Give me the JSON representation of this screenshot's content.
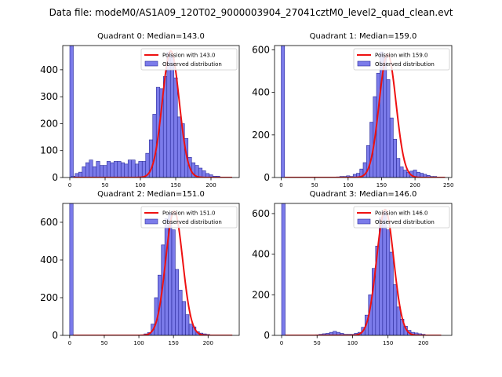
{
  "figure_title": "Data file: modeM0/AS1A09_120T02_9000003904_27041cztM0_level2_quad_clean.evt",
  "chart_data": [
    {
      "type": "bar",
      "title": "Quadrant 0: Median=143.0",
      "xlim": [
        -10,
        240
      ],
      "ylim": [
        0,
        490
      ],
      "xticks": [
        0,
        50,
        100,
        150,
        200
      ],
      "yticks": [
        0,
        100,
        200,
        300,
        400
      ],
      "legend_position": "top-right",
      "legend": [
        "Poission with 143.0",
        "Observed distribution"
      ],
      "hist": {
        "bin_width": 5,
        "zero_bin_count": 490,
        "x": [
          5,
          10,
          15,
          20,
          25,
          30,
          35,
          40,
          45,
          50,
          55,
          60,
          65,
          70,
          75,
          80,
          85,
          90,
          95,
          100,
          105,
          110,
          115,
          120,
          125,
          130,
          135,
          140,
          145,
          150,
          155,
          160,
          165,
          170,
          175,
          180,
          185,
          190,
          195,
          200,
          205,
          210,
          215,
          220,
          225
        ],
        "counts": [
          5,
          15,
          20,
          40,
          55,
          65,
          40,
          60,
          45,
          45,
          60,
          55,
          60,
          60,
          55,
          50,
          65,
          65,
          50,
          60,
          60,
          90,
          140,
          235,
          335,
          330,
          375,
          465,
          450,
          370,
          225,
          200,
          145,
          75,
          55,
          45,
          35,
          25,
          15,
          10,
          5,
          5,
          0,
          0,
          0
        ]
      },
      "poisson": {
        "name": "Poission with 143.0",
        "mean": 143.0,
        "peak": 470,
        "x_start": 5,
        "x_end": 230
      }
    },
    {
      "type": "bar",
      "title": "Quadrant 1: Median=159.0",
      "xlim": [
        -10,
        255
      ],
      "ylim": [
        0,
        620
      ],
      "xticks": [
        0,
        50,
        100,
        150,
        200,
        250
      ],
      "yticks": [
        0,
        200,
        400,
        600
      ],
      "legend_position": "top-right",
      "legend": [
        "Poission with 159.0",
        "Observed distribution"
      ],
      "hist": {
        "bin_width": 5,
        "zero_bin_count": 620,
        "x": [
          5,
          10,
          15,
          20,
          25,
          30,
          35,
          40,
          45,
          50,
          55,
          60,
          65,
          70,
          75,
          80,
          85,
          90,
          95,
          100,
          105,
          110,
          115,
          120,
          125,
          130,
          135,
          140,
          145,
          150,
          155,
          160,
          165,
          170,
          175,
          180,
          185,
          190,
          195,
          200,
          205,
          210,
          215,
          220,
          225,
          230,
          235,
          240
        ],
        "counts": [
          0,
          0,
          0,
          0,
          0,
          0,
          0,
          0,
          0,
          0,
          0,
          0,
          0,
          0,
          0,
          2,
          3,
          5,
          5,
          8,
          5,
          15,
          20,
          40,
          70,
          150,
          260,
          380,
          490,
          590,
          570,
          460,
          280,
          180,
          90,
          50,
          35,
          25,
          30,
          35,
          25,
          20,
          15,
          10,
          5,
          5,
          0,
          0
        ]
      },
      "poisson": {
        "name": "Poission with 159.0",
        "mean": 159.0,
        "peak": 580,
        "x_start": 5,
        "x_end": 245
      }
    },
    {
      "type": "bar",
      "title": "Quadrant 2: Median=151.0",
      "xlim": [
        -10,
        245
      ],
      "ylim": [
        0,
        700
      ],
      "xticks": [
        0,
        50,
        100,
        150,
        200
      ],
      "yticks": [
        0,
        200,
        400,
        600
      ],
      "legend_position": "top-right",
      "legend": [
        "Poission with 151.0",
        "Observed distribution"
      ],
      "hist": {
        "bin_width": 5,
        "zero_bin_count": 700,
        "x": [
          5,
          10,
          15,
          20,
          25,
          30,
          35,
          40,
          45,
          50,
          55,
          60,
          65,
          70,
          75,
          80,
          85,
          90,
          95,
          100,
          105,
          110,
          115,
          120,
          125,
          130,
          135,
          140,
          145,
          150,
          155,
          160,
          165,
          170,
          175,
          180,
          185,
          190,
          195,
          200,
          205,
          210,
          215,
          220,
          225,
          230
        ],
        "counts": [
          0,
          0,
          0,
          0,
          0,
          0,
          0,
          0,
          0,
          0,
          0,
          0,
          0,
          0,
          0,
          0,
          0,
          0,
          0,
          2,
          3,
          8,
          15,
          60,
          200,
          320,
          480,
          620,
          650,
          560,
          350,
          240,
          180,
          110,
          60,
          45,
          20,
          12,
          8,
          5,
          0,
          0,
          0,
          0,
          0,
          0
        ]
      },
      "poisson": {
        "name": "Poission with 151.0",
        "mean": 151.0,
        "peak": 660,
        "x_start": 5,
        "x_end": 235
      }
    },
    {
      "type": "bar",
      "title": "Quadrant 3: Median=146.0",
      "xlim": [
        -10,
        240
      ],
      "ylim": [
        0,
        650
      ],
      "xticks": [
        0,
        50,
        100,
        150,
        200
      ],
      "yticks": [
        0,
        200,
        400,
        600
      ],
      "legend_position": "top-right",
      "legend": [
        "Poission with 146.0",
        "Observed distribution"
      ],
      "hist": {
        "bin_width": 5,
        "zero_bin_count": 650,
        "x": [
          5,
          10,
          15,
          20,
          25,
          30,
          35,
          40,
          45,
          50,
          55,
          60,
          65,
          70,
          75,
          80,
          85,
          90,
          95,
          100,
          105,
          110,
          115,
          120,
          125,
          130,
          135,
          140,
          145,
          150,
          155,
          160,
          165,
          170,
          175,
          180,
          185,
          190,
          195,
          200,
          205,
          210,
          215,
          220,
          225
        ],
        "counts": [
          0,
          0,
          0,
          0,
          0,
          0,
          0,
          0,
          2,
          3,
          5,
          8,
          10,
          15,
          20,
          15,
          10,
          5,
          5,
          5,
          10,
          15,
          40,
          100,
          200,
          330,
          440,
          580,
          610,
          520,
          410,
          250,
          140,
          80,
          45,
          25,
          15,
          12,
          8,
          5,
          2,
          0,
          0,
          0,
          0
        ]
      },
      "poisson": {
        "name": "Poission with 146.0",
        "mean": 146.0,
        "peak": 620,
        "x_start": 5,
        "x_end": 225
      }
    }
  ]
}
